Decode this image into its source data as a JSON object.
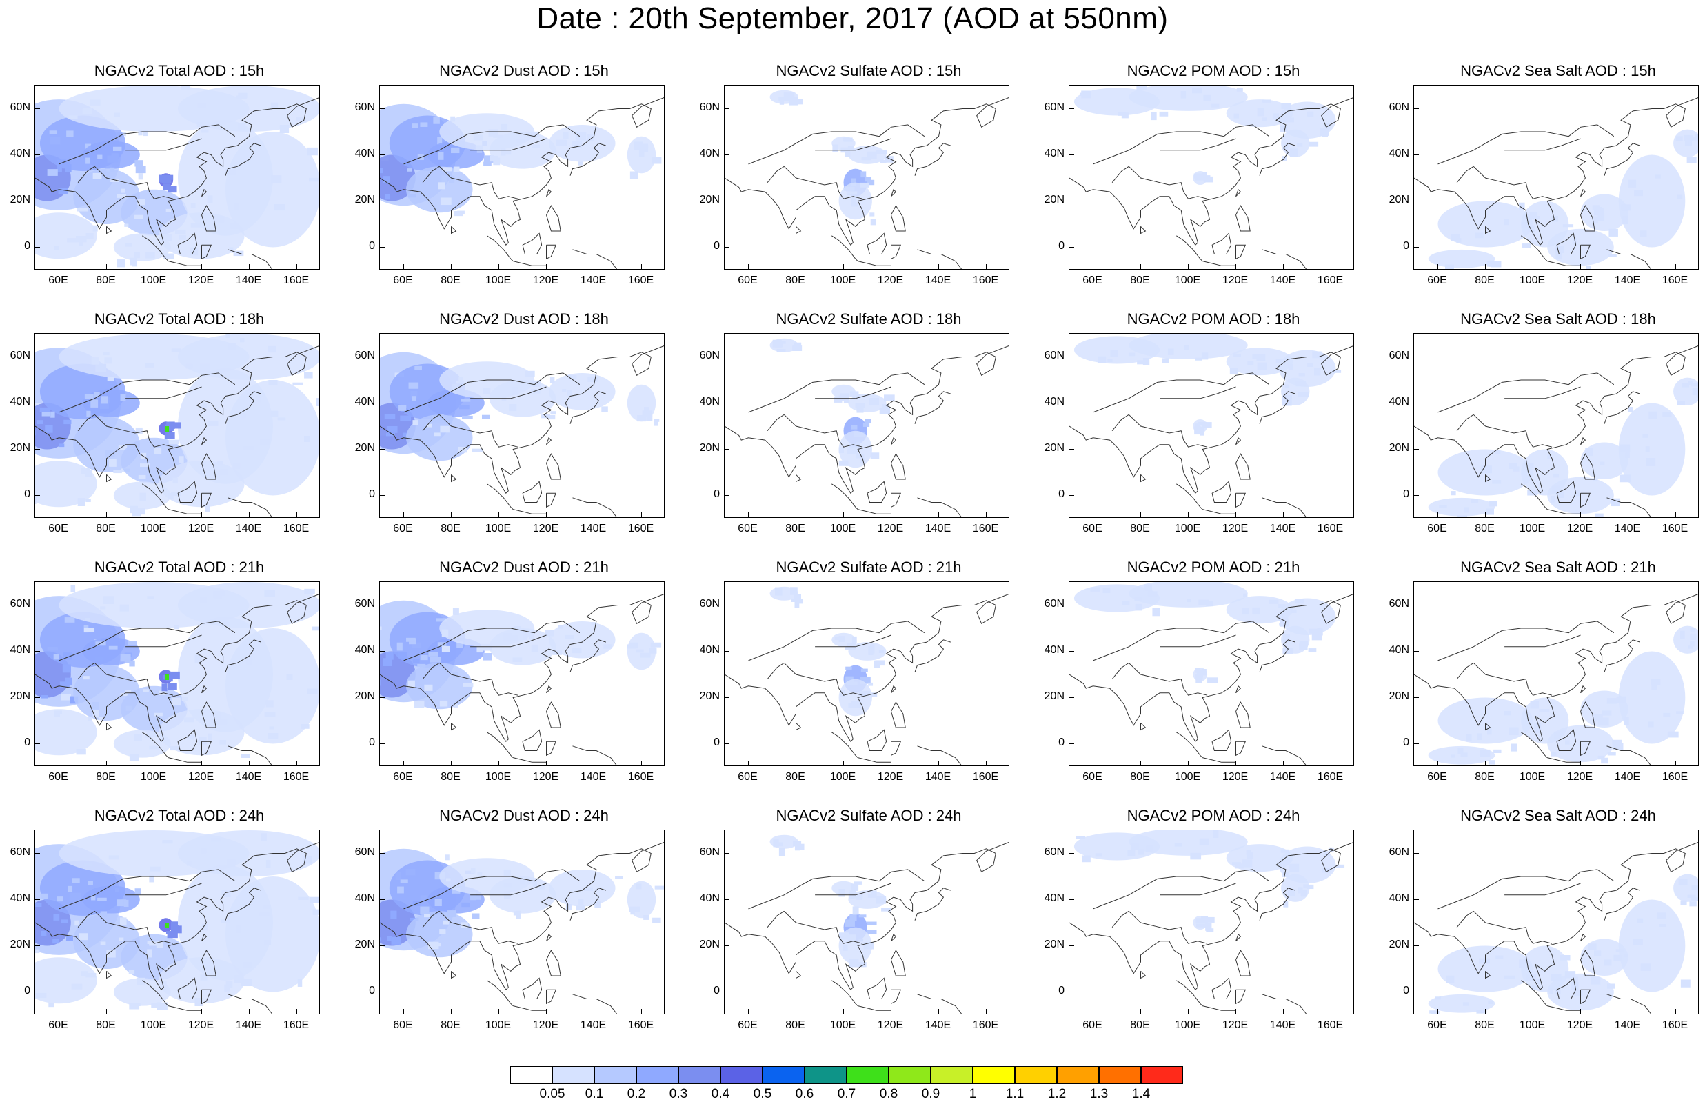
{
  "title": "Date : 20th September, 2017 (AOD at 550nm)",
  "axes": {
    "lat_labels": [
      "60N",
      "40N",
      "20N",
      "0"
    ],
    "lon_labels": [
      "60E",
      "80E",
      "100E",
      "120E",
      "140E",
      "160E"
    ]
  },
  "panels": [
    {
      "title": "NGACv2 Total AOD : 15h",
      "species": "total"
    },
    {
      "title": "NGACv2 Dust AOD : 15h",
      "species": "dust"
    },
    {
      "title": "NGACv2 Sulfate AOD : 15h",
      "species": "sulfate"
    },
    {
      "title": "NGACv2 POM AOD : 15h",
      "species": "pom"
    },
    {
      "title": "NGACv2 Sea Salt AOD : 15h",
      "species": "seasalt"
    },
    {
      "title": "NGACv2 Total AOD : 18h",
      "species": "total"
    },
    {
      "title": "NGACv2 Dust AOD : 18h",
      "species": "dust"
    },
    {
      "title": "NGACv2 Sulfate AOD : 18h",
      "species": "sulfate"
    },
    {
      "title": "NGACv2 POM AOD : 18h",
      "species": "pom"
    },
    {
      "title": "NGACv2 Sea Salt AOD : 18h",
      "species": "seasalt"
    },
    {
      "title": "NGACv2 Total AOD : 21h",
      "species": "total"
    },
    {
      "title": "NGACv2 Dust AOD : 21h",
      "species": "dust"
    },
    {
      "title": "NGACv2 Sulfate AOD : 21h",
      "species": "sulfate"
    },
    {
      "title": "NGACv2 POM AOD : 21h",
      "species": "pom"
    },
    {
      "title": "NGACv2 Sea Salt AOD : 21h",
      "species": "seasalt"
    },
    {
      "title": "NGACv2 Total AOD : 24h",
      "species": "total"
    },
    {
      "title": "NGACv2 Dust AOD : 24h",
      "species": "dust"
    },
    {
      "title": "NGACv2 Sulfate AOD : 24h",
      "species": "sulfate"
    },
    {
      "title": "NGACv2 POM AOD : 24h",
      "species": "pom"
    },
    {
      "title": "NGACv2 Sea Salt  AOD : 24h",
      "species": "seasalt"
    }
  ],
  "colorbar": {
    "labels": [
      "0.05",
      "0.1",
      "0.2",
      "0.3",
      "0.4",
      "0.5",
      "0.6",
      "0.7",
      "0.8",
      "0.9",
      "1",
      "1.1",
      "1.2",
      "1.3",
      "1.4"
    ],
    "colors": [
      "#ffffff",
      "#d6e2ff",
      "#b5c9ff",
      "#8fa9ff",
      "#7b8ef0",
      "#5b62e6",
      "#0a63f0",
      "#0e9488",
      "#3ee01a",
      "#8fe81a",
      "#c8f028",
      "#ffff00",
      "#ffd000",
      "#ffa000",
      "#ff7000",
      "#ff2a1a"
    ]
  }
}
